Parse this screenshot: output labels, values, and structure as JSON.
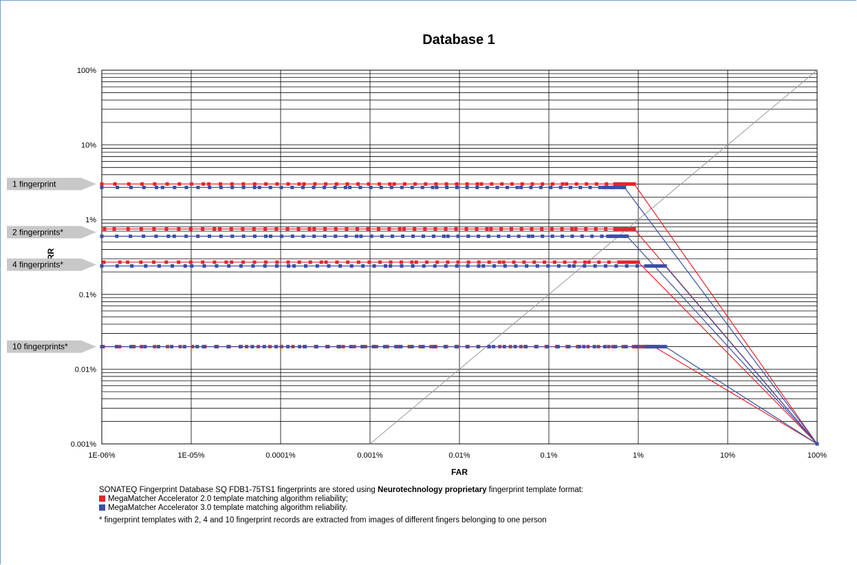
{
  "chart_data": {
    "type": "line",
    "title": "Database 1",
    "xlabel": "FAR",
    "ylabel": "FRR",
    "x_scale": "log",
    "y_scale": "log",
    "xlim": [
      "1E-06%",
      "100%"
    ],
    "ylim": [
      "0.001%",
      "100%"
    ],
    "x_tick_labels": [
      "1E-06%",
      "1E-05%",
      "0.0001%",
      "0.001%",
      "0.01%",
      "0.1%",
      "1%",
      "10%",
      "100%"
    ],
    "y_tick_labels": [
      "0.001%",
      "0.01%",
      "0.1%",
      "1%",
      "10%",
      "100%"
    ],
    "grid": true,
    "diagonal_reference_line": true,
    "group_labels": [
      "1 fingerprint",
      "2 fingerprints*",
      "4 fingerprints*",
      "10 fingerprints*"
    ],
    "series": [
      {
        "name": "MegaMatcher Accelerator 2.0 template matching algorithm reliability;",
        "group": "1 fingerprint",
        "color": "#e8232a",
        "points": [
          [
            "1E-06%",
            "3%"
          ],
          [
            "0.9%",
            "3%"
          ],
          [
            "100%",
            "0.001%"
          ]
        ]
      },
      {
        "name": "MegaMatcher Accelerator 3.0 template matching algorithm reliability.",
        "group": "1 fingerprint",
        "color": "#3b4fa3",
        "points": [
          [
            "1E-06%",
            "2.7%"
          ],
          [
            "0.7%",
            "2.7%"
          ],
          [
            "100%",
            "0.001%"
          ]
        ]
      },
      {
        "name": "MegaMatcher Accelerator 2.0 template matching algorithm reliability;",
        "group": "2 fingerprints*",
        "color": "#e8232a",
        "points": [
          [
            "1E-06%",
            "0.75%"
          ],
          [
            "0.9%",
            "0.75%"
          ],
          [
            "100%",
            "0.001%"
          ]
        ]
      },
      {
        "name": "MegaMatcher Accelerator 3.0 template matching algorithm reliability.",
        "group": "2 fingerprints*",
        "color": "#3b4fa3",
        "points": [
          [
            "1E-06%",
            "0.6%"
          ],
          [
            "0.75%",
            "0.6%"
          ],
          [
            "100%",
            "0.001%"
          ]
        ]
      },
      {
        "name": "MegaMatcher Accelerator 2.0 template matching algorithm reliability;",
        "group": "4 fingerprints*",
        "color": "#e8232a",
        "points": [
          [
            "1E-06%",
            "0.27%"
          ],
          [
            "1%",
            "0.27%"
          ],
          [
            "100%",
            "0.001%"
          ]
        ]
      },
      {
        "name": "MegaMatcher Accelerator 3.0 template matching algorithm reliability.",
        "group": "4 fingerprints*",
        "color": "#3b4fa3",
        "points": [
          [
            "1E-06%",
            "0.24%"
          ],
          [
            "2%",
            "0.24%"
          ],
          [
            "100%",
            "0.001%"
          ]
        ]
      },
      {
        "name": "MegaMatcher Accelerator 2.0 template matching algorithm reliability;",
        "group": "10 fingerprints*",
        "color": "#e8232a",
        "points": [
          [
            "1E-06%",
            "0.02%"
          ],
          [
            "1.5%",
            "0.02%"
          ],
          [
            "100%",
            "0.001%"
          ]
        ]
      },
      {
        "name": "MegaMatcher Accelerator 3.0 template matching algorithm reliability.",
        "group": "10 fingerprints*",
        "color": "#3b4fa3",
        "points": [
          [
            "1E-06%",
            "0.02%"
          ],
          [
            "2%",
            "0.02%"
          ],
          [
            "100%",
            "0.001%"
          ]
        ]
      }
    ]
  },
  "caption": {
    "line1_before": "SONATEQ Fingerprint Database SQ FDB1-75TS1 fingerprints are stored using ",
    "line1_bold": "Neurotechnology proprietary",
    "line1_after": " fingerprint template format:",
    "legend_red": "MegaMatcher Accelerator 2.0 template matching algorithm reliability;",
    "legend_blue": "MegaMatcher Accelerator 3.0 template matching algorithm reliability.",
    "footnote": "* fingerprint templates with 2, 4 and 10 fingerprint records are extracted from images of different fingers belonging to one person"
  },
  "colors": {
    "red": "#e8232a",
    "blue": "#3b4fa3",
    "frame": "#6e9fc8",
    "callout": "#c8c8c8"
  }
}
